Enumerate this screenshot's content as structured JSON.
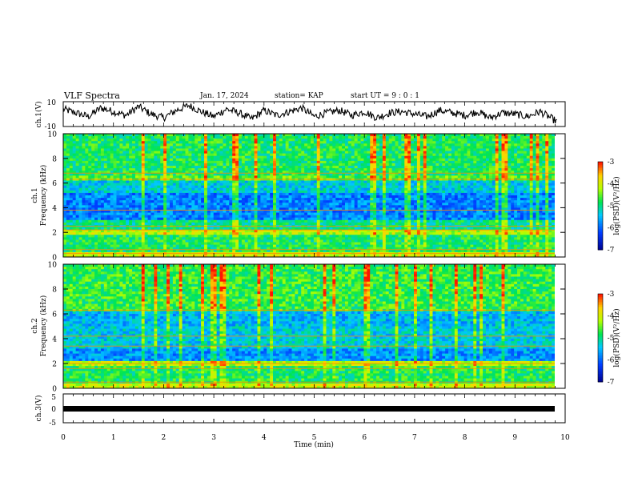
{
  "header": {
    "title": "VLF Spectra",
    "date": "Jan. 17, 2024",
    "station": "station= KAP",
    "start_ut": "start UT =  9 : 0 : 1"
  },
  "xaxis": {
    "label": "Time  (min)",
    "ticks": [
      "0",
      "1",
      "2",
      "3",
      "4",
      "5",
      "6",
      "7",
      "8",
      "9",
      "10"
    ],
    "range": [
      0,
      10
    ]
  },
  "chart_data": [
    {
      "type": "line",
      "ylabel": "ch.1(V)",
      "ylim": [
        -10,
        10
      ],
      "yticks": [
        "10",
        "-10"
      ],
      "description_series_x": [
        0,
        0.25,
        0.5,
        0.75,
        1,
        1.25,
        1.5,
        1.75,
        2,
        2.25,
        2.5,
        2.75,
        3,
        3.25,
        3.5,
        3.75,
        4,
        4.25,
        4.5,
        4.75,
        5,
        5.25,
        5.5,
        5.75,
        6,
        6.25,
        6.5,
        6.75,
        7,
        7.25,
        7.5,
        7.75,
        8,
        8.25,
        8.5,
        8.75,
        9,
        9.25,
        9.5,
        9.75
      ],
      "y": [
        4,
        1,
        -2,
        5,
        2,
        -1,
        6,
        0,
        -3,
        3,
        7,
        2,
        -2,
        4,
        1,
        -4,
        3,
        -1,
        2,
        5,
        -2,
        1,
        3,
        -1,
        2,
        -3,
        1,
        2,
        0,
        -2,
        3,
        1,
        -1,
        2,
        -3,
        1,
        0,
        -2,
        2,
        -4
      ]
    },
    {
      "type": "heatmap",
      "ylabel": "ch.1\nFrequency  (kHz)",
      "ylim": [
        0,
        10
      ],
      "yticks": [
        "0",
        "2",
        "4",
        "6",
        "8",
        "10"
      ],
      "colorbar": {
        "label": "log(PSD)(V²/Hz)",
        "ticks": [
          "-3",
          "-4",
          "-5",
          "-6",
          "-7"
        ],
        "range": [
          -7,
          -3
        ]
      }
    },
    {
      "type": "heatmap",
      "ylabel": "ch.2\nFrequency  (kHz)",
      "ylim": [
        0,
        10
      ],
      "yticks": [
        "0",
        "2",
        "4",
        "6",
        "8",
        "10"
      ],
      "colorbar": {
        "label": "log(PSD)(V²/Hz)",
        "ticks": [
          "-3",
          "-4",
          "-5",
          "-6",
          "-7"
        ],
        "range": [
          -7,
          -3
        ]
      }
    },
    {
      "type": "line",
      "ylabel": "ch.3(V)",
      "ylim": [
        -5,
        5
      ],
      "yticks": [
        "5",
        "0",
        "-5"
      ],
      "x": [
        0,
        9.85
      ],
      "y": [
        0,
        0
      ]
    }
  ],
  "colors": {
    "high": "#ff0000",
    "mid": "#ffff00",
    "low": "#00ff00",
    "lower": "#0000ff",
    "min": "#000080"
  }
}
